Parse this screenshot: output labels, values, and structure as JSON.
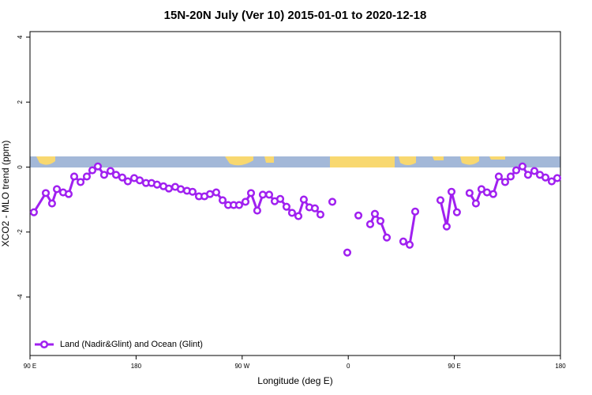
{
  "chart_data": {
    "type": "line",
    "title": "15N-20N July (Ver 10)   2015-01-01 to 2020-12-18",
    "xlabel": "Longitude (deg E)",
    "ylabel": "XCO2 - MLO trend (ppm)",
    "xlim": [
      90,
      540
    ],
    "ylim": [
      -5.8,
      4.17
    ],
    "xticks": [
      {
        "value": 90,
        "label": "90 E"
      },
      180,
      {
        "value": 270,
        "label": "90 W"
      },
      {
        "value": 360,
        "label": "0"
      },
      {
        "value": 450,
        "label": "90 E"
      },
      {
        "value": 540,
        "label": "180"
      }
    ],
    "yticks": [
      -4,
      -2,
      0,
      2,
      4
    ],
    "legend": "bottom-left",
    "series": [
      {
        "name": "Land (Nadir&Glint) and Ocean (Glint)",
        "color": "#a020f0",
        "x": [
          93.3,
          103.4,
          108.7,
          112.8,
          118.1,
          122.8,
          127.5,
          132.9,
          138.2,
          142.9,
          147.6,
          152.9,
          158.3,
          163.0,
          168.3,
          173.0,
          178.4,
          183.1,
          188.4,
          193.1,
          197.8,
          203.2,
          207.8,
          213.2,
          217.9,
          223.2,
          227.9,
          233.3,
          238.0,
          242.7,
          248.0,
          253.4,
          258.1,
          262.8,
          267.4,
          272.8,
          277.5,
          282.8,
          287.5,
          292.9,
          297.6,
          302.3,
          307.6,
          312.3,
          317.7,
          322.3,
          327.0,
          331.7,
          336.4,
          null,
          346.5,
          null,
          359.2,
          null,
          368.6,
          null,
          378.6,
          382.6,
          387.3,
          392.7,
          null,
          406.7,
          412.1,
          416.8,
          null,
          438.2,
          443.5,
          447.6,
          452.2,
          null,
          462.9,
          468.3,
          473.0,
          477.7,
          483.0,
          487.7,
          493.1,
          497.8,
          502.5,
          507.8,
          512.5,
          517.9,
          522.6,
          527.3,
          532.6,
          537.3
        ],
        "values": [
          -1.39,
          -0.8,
          -1.12,
          -0.68,
          -0.78,
          -0.83,
          -0.29,
          -0.46,
          -0.29,
          -0.1,
          0.02,
          -0.24,
          -0.12,
          -0.24,
          -0.32,
          -0.44,
          -0.34,
          -0.41,
          -0.49,
          -0.49,
          -0.54,
          -0.59,
          -0.66,
          -0.61,
          -0.68,
          -0.73,
          -0.76,
          -0.9,
          -0.9,
          -0.83,
          -0.78,
          -1.02,
          -1.17,
          -1.17,
          -1.17,
          -1.07,
          -0.8,
          -1.34,
          -0.85,
          -0.85,
          -1.05,
          -0.98,
          -1.22,
          -1.41,
          -1.51,
          -1.0,
          -1.24,
          -1.27,
          -1.46,
          null,
          -1.07,
          null,
          -2.63,
          null,
          -1.49,
          null,
          -1.76,
          -1.44,
          -1.66,
          -2.17,
          null,
          -2.29,
          -2.39,
          -1.37,
          null,
          -1.02,
          -1.83,
          -0.76,
          -1.39,
          null,
          -0.8,
          -1.12,
          -0.68,
          -0.78,
          -0.83,
          -0.29,
          -0.46,
          -0.29,
          -0.1,
          0.02,
          -0.24,
          -0.12,
          -0.24,
          -0.32,
          -0.44,
          -0.34
        ]
      }
    ]
  }
}
